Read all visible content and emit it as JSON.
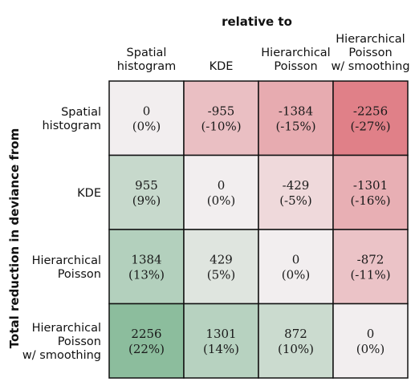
{
  "chart_data": {
    "type": "heatmap",
    "title": "relative to",
    "ylabel": "Total reduction in deviance from",
    "columns": [
      [
        "Spatial",
        "histogram"
      ],
      [
        "KDE"
      ],
      [
        "Hierarchical",
        "Poisson"
      ],
      [
        "Hierarchical",
        "Poisson",
        "w/ smoothing"
      ]
    ],
    "rows": [
      [
        "Spatial",
        "histogram"
      ],
      [
        "KDE"
      ],
      [
        "Hierarchical",
        "Poisson"
      ],
      [
        "Hierarchical",
        "Poisson",
        "w/ smoothing"
      ]
    ],
    "values": [
      [
        0,
        -955,
        -1384,
        -2256
      ],
      [
        955,
        0,
        -429,
        -1301
      ],
      [
        1384,
        429,
        0,
        -872
      ],
      [
        2256,
        1301,
        872,
        0
      ]
    ],
    "percent_labels": [
      [
        "(0%)",
        "(-10%)",
        "(-15%)",
        "(-27%)"
      ],
      [
        "(9%)",
        "(0%)",
        "(-5%)",
        "(-16%)"
      ],
      [
        "(13%)",
        "(5%)",
        "(0%)",
        "(-11%)"
      ],
      [
        "(22%)",
        "(14%)",
        "(10%)",
        "(0%)"
      ]
    ],
    "colors": {
      "neutral": "#f2eeef",
      "negative": "#e08088",
      "positive": "#8cbd9d",
      "grid": "#111111"
    }
  }
}
